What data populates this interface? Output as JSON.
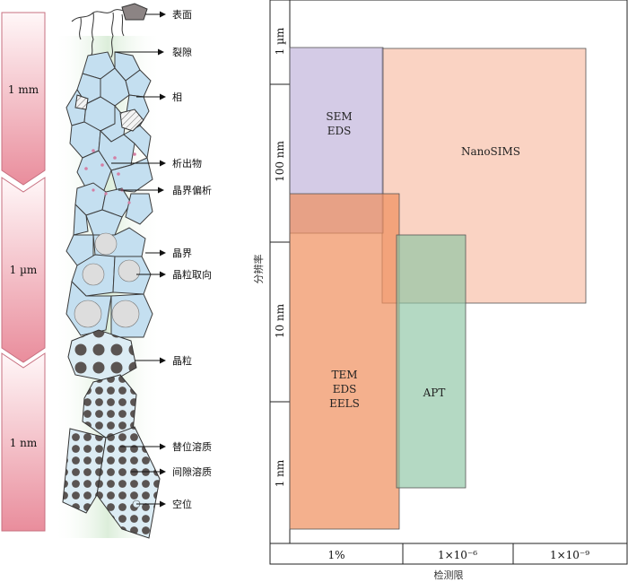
{
  "microstructure": {
    "scale_bars": [
      "1 mm",
      "1 µm",
      "1 nm"
    ],
    "features": [
      "表面",
      "裂隙",
      "相",
      "析出物",
      "晶界偏析",
      "晶界",
      "晶粒取向",
      "晶粒",
      "替位溶质",
      "间隙溶质",
      "空位"
    ]
  },
  "chart": {
    "y_title": "分辨率",
    "x_title": "检测限",
    "y_ticks": [
      "1 µm",
      "100 nm",
      "10 nm",
      "1 nm"
    ],
    "x_ticks": [
      "1%",
      "1×10⁻⁶",
      "1×10⁻⁹"
    ],
    "regions": [
      {
        "id": "nanosims",
        "lines": [
          "NanoSIMS"
        ],
        "color": "#f7b59b"
      },
      {
        "id": "sem-eds",
        "lines": [
          "SEM",
          "EDS"
        ],
        "color": "#b8a8d6"
      },
      {
        "id": "tem-eds-eels",
        "lines": [
          "TEM",
          "EDS",
          "EELS"
        ],
        "color": "#f08e5c"
      },
      {
        "id": "apt",
        "lines": [
          "APT"
        ],
        "color": "#8cc5a3"
      }
    ]
  }
}
